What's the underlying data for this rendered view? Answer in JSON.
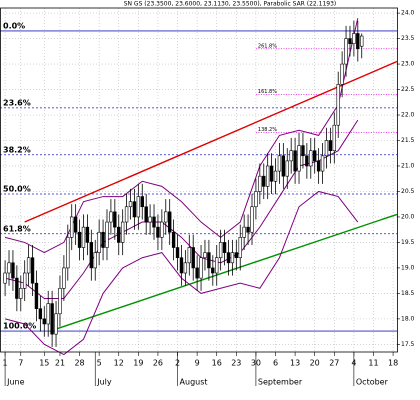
{
  "chart_data": {
    "type": "candlestick",
    "title": "SN GS (23.3500, 23.6000, 23.1130, 23.5500), Parabolic SAR (22.1193)",
    "xlim": [
      -1.3,
      100
    ],
    "ylim": [
      17.35,
      24.1
    ],
    "grid": true,
    "up_color": "#ffffff",
    "down_color": "#000000",
    "x": [
      0,
      1,
      2,
      3,
      4,
      5,
      6,
      7,
      8,
      9,
      10,
      11,
      12,
      13,
      14,
      15,
      16,
      17,
      18,
      19,
      20,
      21,
      22,
      23,
      24,
      25,
      26,
      27,
      28,
      29,
      30,
      31,
      32,
      33,
      34,
      35,
      36,
      37,
      38,
      39,
      40,
      41,
      42,
      43,
      44,
      45,
      46,
      47,
      48,
      49,
      50,
      51,
      52,
      53,
      54,
      55,
      56,
      57,
      58,
      59,
      60,
      61,
      62,
      63,
      64,
      65,
      66,
      67,
      68,
      69,
      70,
      71,
      72,
      73,
      74,
      75,
      76,
      77,
      78,
      79,
      80,
      81,
      82,
      83,
      84,
      85,
      86,
      87,
      88,
      89,
      90,
      91
    ],
    "open": [
      18.7,
      18.9,
      19.1,
      18.8,
      18.4,
      18.6,
      18.9,
      19.2,
      18.7,
      18.2,
      18.0,
      17.9,
      18.3,
      17.7,
      18.1,
      18.6,
      19.0,
      19.6,
      20.0,
      19.7,
      19.4,
      19.8,
      19.5,
      19.0,
      19.3,
      19.7,
      19.4,
      19.9,
      20.1,
      19.8,
      19.5,
      19.9,
      20.2,
      20.3,
      20.0,
      20.4,
      20.2,
      19.9,
      20.0,
      19.8,
      19.6,
      19.9,
      20.1,
      19.7,
      19.4,
      19.2,
      18.9,
      19.1,
      19.4,
      19.0,
      18.8,
      19.2,
      19.3,
      19.0,
      18.9,
      19.2,
      19.5,
      19.3,
      19.1,
      19.3,
      19.2,
      19.6,
      19.8,
      19.7,
      20.2,
      20.5,
      20.8,
      20.6,
      21.0,
      20.7,
      20.9,
      21.2,
      20.8,
      21.1,
      21.3,
      20.9,
      21.4,
      21.2,
      21.0,
      21.3,
      21.1,
      20.9,
      21.2,
      21.5,
      21.3,
      21.8,
      22.6,
      23.0,
      23.5,
      23.4,
      23.6,
      23.35
    ],
    "high": [
      19.15,
      19.35,
      19.35,
      19.05,
      18.85,
      19.15,
      19.45,
      19.45,
      18.95,
      18.45,
      18.25,
      18.55,
      18.55,
      18.35,
      18.85,
      19.25,
      19.85,
      20.25,
      20.25,
      19.95,
      20.05,
      20.05,
      19.75,
      19.55,
      19.95,
      19.95,
      20.15,
      20.35,
      20.35,
      20.05,
      20.15,
      20.45,
      20.55,
      20.55,
      20.65,
      20.65,
      20.45,
      20.25,
      20.25,
      20.05,
      20.15,
      20.35,
      20.35,
      19.95,
      19.65,
      19.45,
      19.35,
      19.65,
      19.65,
      19.25,
      19.45,
      19.55,
      19.55,
      19.25,
      19.45,
      19.75,
      19.75,
      19.55,
      19.55,
      19.55,
      19.85,
      20.05,
      20.05,
      20.45,
      20.75,
      21.05,
      21.05,
      21.25,
      21.25,
      21.15,
      21.45,
      21.45,
      21.35,
      21.55,
      21.55,
      21.65,
      21.65,
      21.45,
      21.55,
      21.55,
      21.35,
      21.45,
      21.75,
      21.75,
      22.05,
      22.85,
      23.25,
      23.75,
      23.75,
      23.85,
      23.85,
      23.6
    ],
    "low": [
      18.45,
      18.65,
      18.55,
      18.15,
      18.15,
      18.35,
      18.65,
      18.45,
      17.95,
      17.75,
      17.65,
      17.65,
      17.45,
      17.45,
      17.85,
      18.35,
      18.75,
      19.35,
      19.45,
      19.15,
      19.15,
      19.25,
      18.75,
      18.75,
      19.05,
      19.15,
      19.15,
      19.65,
      19.55,
      19.25,
      19.25,
      19.65,
      19.95,
      19.75,
      19.75,
      19.95,
      19.65,
      19.65,
      19.55,
      19.35,
      19.35,
      19.65,
      19.45,
      19.15,
      18.95,
      18.65,
      18.65,
      18.85,
      18.75,
      18.55,
      18.55,
      18.95,
      18.75,
      18.65,
      18.65,
      18.95,
      19.05,
      18.85,
      18.85,
      18.95,
      18.95,
      19.35,
      19.45,
      19.45,
      19.95,
      20.25,
      20.35,
      20.35,
      20.45,
      20.45,
      20.65,
      20.55,
      20.55,
      20.85,
      20.65,
      20.65,
      20.95,
      20.75,
      20.75,
      20.85,
      20.65,
      20.65,
      20.95,
      21.05,
      21.05,
      21.55,
      22.35,
      22.75,
      23.15,
      23.15,
      23.05,
      23.113
    ],
    "close": [
      18.9,
      19.1,
      18.8,
      18.4,
      18.6,
      18.9,
      19.2,
      18.7,
      18.2,
      18.0,
      17.9,
      18.3,
      17.7,
      18.1,
      18.6,
      19.0,
      19.6,
      20.0,
      19.7,
      19.4,
      19.8,
      19.5,
      19.0,
      19.3,
      19.7,
      19.4,
      19.9,
      20.1,
      19.8,
      19.5,
      19.9,
      20.2,
      20.3,
      20.0,
      20.4,
      20.2,
      19.9,
      20.0,
      19.8,
      19.6,
      19.9,
      20.1,
      19.7,
      19.4,
      19.2,
      18.9,
      19.1,
      19.4,
      19.0,
      18.8,
      19.2,
      19.3,
      19.0,
      18.9,
      19.2,
      19.5,
      19.3,
      19.1,
      19.3,
      19.2,
      19.6,
      19.8,
      19.7,
      20.2,
      20.5,
      20.8,
      20.6,
      21.0,
      20.7,
      20.9,
      21.2,
      20.8,
      21.1,
      21.3,
      20.9,
      21.4,
      21.2,
      21.0,
      21.3,
      21.1,
      20.9,
      21.2,
      21.5,
      21.3,
      21.8,
      22.6,
      23.0,
      23.5,
      23.4,
      23.6,
      23.3,
      23.55
    ],
    "bands": [
      {
        "color": "#800080",
        "x": [
          0,
          5,
          10,
          15,
          20,
          25,
          30,
          35,
          40,
          45,
          50,
          55,
          60,
          65,
          70,
          75,
          80,
          85,
          90
        ],
        "values": [
          19.6,
          19.5,
          19.3,
          19.5,
          20.3,
          20.4,
          20.4,
          20.7,
          20.6,
          20.3,
          19.9,
          19.6,
          19.9,
          21.0,
          21.6,
          21.7,
          21.6,
          22.2,
          23.9
        ]
      },
      {
        "color": "#800080",
        "x": [
          0,
          5,
          10,
          15,
          20,
          25,
          30,
          35,
          40,
          45,
          50,
          55,
          60,
          65,
          70,
          75,
          80,
          85,
          90
        ],
        "values": [
          18.8,
          18.7,
          18.4,
          18.4,
          18.9,
          19.5,
          19.7,
          19.9,
          19.9,
          19.6,
          19.2,
          19.1,
          19.3,
          19.8,
          20.4,
          21.0,
          21.1,
          21.3,
          21.9
        ]
      },
      {
        "color": "#800080",
        "x": [
          0,
          5,
          10,
          15,
          20,
          25,
          30,
          35,
          40,
          45,
          50,
          55,
          60,
          65,
          70,
          75,
          80,
          85,
          90
        ],
        "values": [
          18.0,
          17.9,
          17.5,
          17.3,
          17.6,
          18.5,
          19.0,
          19.2,
          19.3,
          18.8,
          18.5,
          18.6,
          18.7,
          18.6,
          19.2,
          20.2,
          20.5,
          20.4,
          19.9
        ]
      }
    ],
    "trendlines": [
      {
        "color": "#e00000",
        "x": [
          5,
          100
        ],
        "values": [
          19.9,
          23.05
        ]
      },
      {
        "color": "#009000",
        "x": [
          13,
          100
        ],
        "values": [
          17.8,
          20.05
        ]
      }
    ],
    "fib_color": "#2020c0",
    "fib_levels": [
      {
        "value": 23.65,
        "label": "0.0%"
      },
      {
        "value": 22.14,
        "label": "23.6%"
      },
      {
        "value": 21.22,
        "label": "38.2%"
      },
      {
        "value": 20.45,
        "label": "50.0%"
      },
      {
        "value": 19.67,
        "label": "61.8%"
      },
      {
        "value": 17.76,
        "label": "100.0%"
      }
    ],
    "ext_color": "#e000e0",
    "ext_levels": [
      {
        "value": 23.3,
        "label": "261.8%"
      },
      {
        "value": 22.4,
        "label": "161.8%"
      },
      {
        "value": 21.66,
        "label": "138.2%"
      }
    ],
    "yticks": [
      {
        "value": 17.5,
        "label": "17.5"
      },
      {
        "value": 18,
        "label": "18.0"
      },
      {
        "value": 18.5,
        "label": "18.5"
      },
      {
        "value": 19,
        "label": "19.0"
      },
      {
        "value": 19.5,
        "label": "19.5"
      },
      {
        "value": 20,
        "label": "20.0"
      },
      {
        "value": 20.5,
        "label": "20.5"
      },
      {
        "value": 21,
        "label": "21.0"
      },
      {
        "value": 21.5,
        "label": "21.5"
      },
      {
        "value": 22,
        "label": "22.0"
      },
      {
        "value": 22.5,
        "label": "22.5"
      },
      {
        "value": 23,
        "label": "23.0"
      },
      {
        "value": 23.5,
        "label": "23.5"
      },
      {
        "value": 24,
        "label": "24.0"
      }
    ],
    "xticks": [
      {
        "value": 0,
        "label": "1"
      },
      {
        "value": 4,
        "label": "7"
      },
      {
        "value": 10,
        "label": "15"
      },
      {
        "value": 14,
        "label": "21"
      },
      {
        "value": 19,
        "label": "28"
      },
      {
        "value": 24,
        "label": "5"
      },
      {
        "value": 29,
        "label": "12"
      },
      {
        "value": 34,
        "label": "19"
      },
      {
        "value": 39,
        "label": "26"
      },
      {
        "value": 44,
        "label": "2"
      },
      {
        "value": 49,
        "label": "9"
      },
      {
        "value": 54,
        "label": "16"
      },
      {
        "value": 59,
        "label": "23"
      },
      {
        "value": 64,
        "label": "30"
      },
      {
        "value": 69,
        "label": "6"
      },
      {
        "value": 74,
        "label": "13"
      },
      {
        "value": 79,
        "label": "20"
      },
      {
        "value": 84,
        "label": "27"
      },
      {
        "value": 89,
        "label": "4"
      },
      {
        "value": 94,
        "label": "11"
      },
      {
        "value": 99,
        "label": "18"
      }
    ],
    "months": [
      {
        "value": 0,
        "label": "June"
      },
      {
        "value": 23,
        "label": "July"
      },
      {
        "value": 44,
        "label": "August"
      },
      {
        "value": 64,
        "label": "September"
      },
      {
        "value": 89,
        "label": "October"
      }
    ]
  }
}
